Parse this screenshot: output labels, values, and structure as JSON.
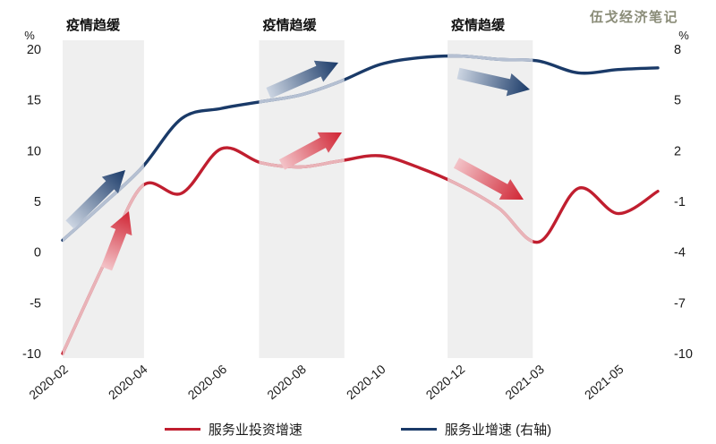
{
  "watermark": "伍戈经济笔记",
  "legend": {
    "items": [
      {
        "label": "服务业投资增速",
        "color": "#c01e2f"
      },
      {
        "label": "服务业增速 (右轴)",
        "color": "#1a3a68"
      }
    ]
  },
  "chart_data": {
    "type": "line",
    "title": "",
    "x": [
      "2020-02",
      "2020-03",
      "2020-04",
      "2020-05",
      "2020-06",
      "2020-07",
      "2020-08",
      "2020-09",
      "2020-10",
      "2020-11",
      "2020-12",
      "2021-02",
      "2021-03",
      "2021-04",
      "2021-05",
      "2021-06"
    ],
    "x_tick_indices": [
      0,
      2,
      4,
      6,
      8,
      10,
      12,
      14
    ],
    "x_tick_labels": [
      "2020-02",
      "2020-04",
      "2020-06",
      "2020-08",
      "2020-10",
      "2020-12",
      "2021-03",
      "2021-05"
    ],
    "left_axis": {
      "unit": "%",
      "min": -10,
      "max": 20,
      "ticks": [
        20,
        15,
        10,
        5,
        0,
        -5,
        -10
      ]
    },
    "right_axis": {
      "unit": "%",
      "min": -10,
      "max": 8,
      "ticks": [
        8,
        5,
        2,
        -1,
        -4,
        -7,
        -10
      ]
    },
    "grid": false,
    "legend_position": "bottom",
    "series": [
      {
        "name": "服务业投资增速",
        "axis": "left",
        "color": "#c01e2f",
        "faded_color": "#e9b3b8",
        "values": [
          -10,
          -1.5,
          6.5,
          5.8,
          10.2,
          8.8,
          8.4,
          9.0,
          9.5,
          8.3,
          6.6,
          4.3,
          1.0,
          6.3,
          3.8,
          6.0
        ]
      },
      {
        "name": "服务业增速 (右轴)",
        "axis": "right",
        "color": "#1a3a68",
        "faded_color": "#b5c0d2",
        "values": [
          -3.3,
          -1.2,
          1.0,
          3.9,
          4.5,
          4.9,
          5.3,
          6.1,
          7.1,
          7.5,
          7.6,
          7.4,
          7.3,
          6.6,
          6.8,
          6.9
        ]
      }
    ],
    "bands": [
      {
        "label": "疫情趋缓",
        "from": 0,
        "to": 2.05,
        "fill": "#efefef"
      },
      {
        "label": "疫情趋缓",
        "from": 4.95,
        "to": 7.1,
        "fill": "#efefef"
      },
      {
        "label": "疫情趋缓",
        "from": 9.7,
        "to": 11.85,
        "fill": "#efefef"
      }
    ],
    "arrows": [
      {
        "theme": "blue",
        "from": [
          78,
          251
        ],
        "to": [
          140,
          190
        ]
      },
      {
        "theme": "red",
        "from": [
          119,
          300
        ],
        "to": [
          144,
          236
        ]
      },
      {
        "theme": "blue",
        "from": [
          300,
          104
        ],
        "to": [
          378,
          70
        ]
      },
      {
        "theme": "red",
        "from": [
          315,
          184
        ],
        "to": [
          382,
          148
        ]
      },
      {
        "theme": "blue",
        "from": [
          512,
          82
        ],
        "to": [
          592,
          100
        ]
      },
      {
        "theme": "red",
        "from": [
          510,
          182
        ],
        "to": [
          585,
          223
        ]
      }
    ],
    "arrow_colors": {
      "blue": [
        "#ccd5e2",
        "#1a3a68"
      ],
      "red": [
        "#f3c3c8",
        "#d02433"
      ]
    }
  }
}
